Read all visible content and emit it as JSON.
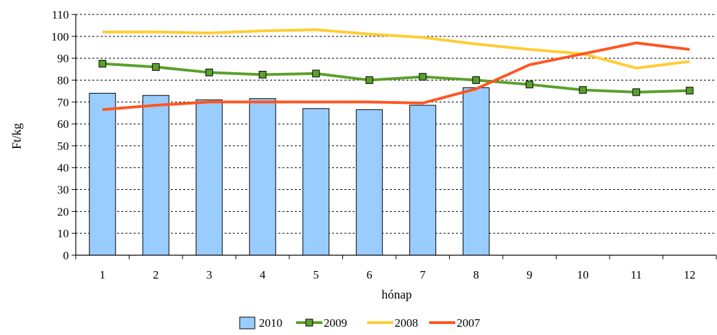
{
  "chart_data": {
    "type": "bar",
    "title": "",
    "xlabel": "hónap",
    "ylabel": "Ft/kg",
    "ylim": [
      0,
      110
    ],
    "yticks": [
      0,
      10,
      20,
      30,
      40,
      50,
      60,
      70,
      80,
      90,
      100,
      110
    ],
    "grid": "horizontal-dashed",
    "legend_position": "bottom",
    "categories": [
      "1",
      "2",
      "3",
      "4",
      "5",
      "6",
      "7",
      "8",
      "9",
      "10",
      "11",
      "12"
    ],
    "series": [
      {
        "name": "2010",
        "type": "bar",
        "color": "#99ccff",
        "values": [
          74,
          73,
          71,
          71.5,
          67,
          66.5,
          68.5,
          76.5,
          null,
          null,
          null,
          null
        ]
      },
      {
        "name": "2009",
        "type": "line",
        "marker": "square",
        "color": "#5aa02c",
        "values": [
          87.5,
          86,
          83.5,
          82.5,
          83,
          80,
          81.5,
          80,
          78,
          75.5,
          74.5,
          75.2
        ]
      },
      {
        "name": "2008",
        "type": "line",
        "color": "#ffcc33",
        "values": [
          102,
          102,
          101.5,
          102.5,
          103,
          101,
          99.5,
          96.5,
          94,
          92,
          85.5,
          88.5
        ]
      },
      {
        "name": "2007",
        "type": "line",
        "color": "#ff5522",
        "values": [
          66.5,
          68.5,
          70,
          70,
          70,
          70,
          69.5,
          76,
          87,
          92,
          97,
          94
        ]
      }
    ]
  }
}
